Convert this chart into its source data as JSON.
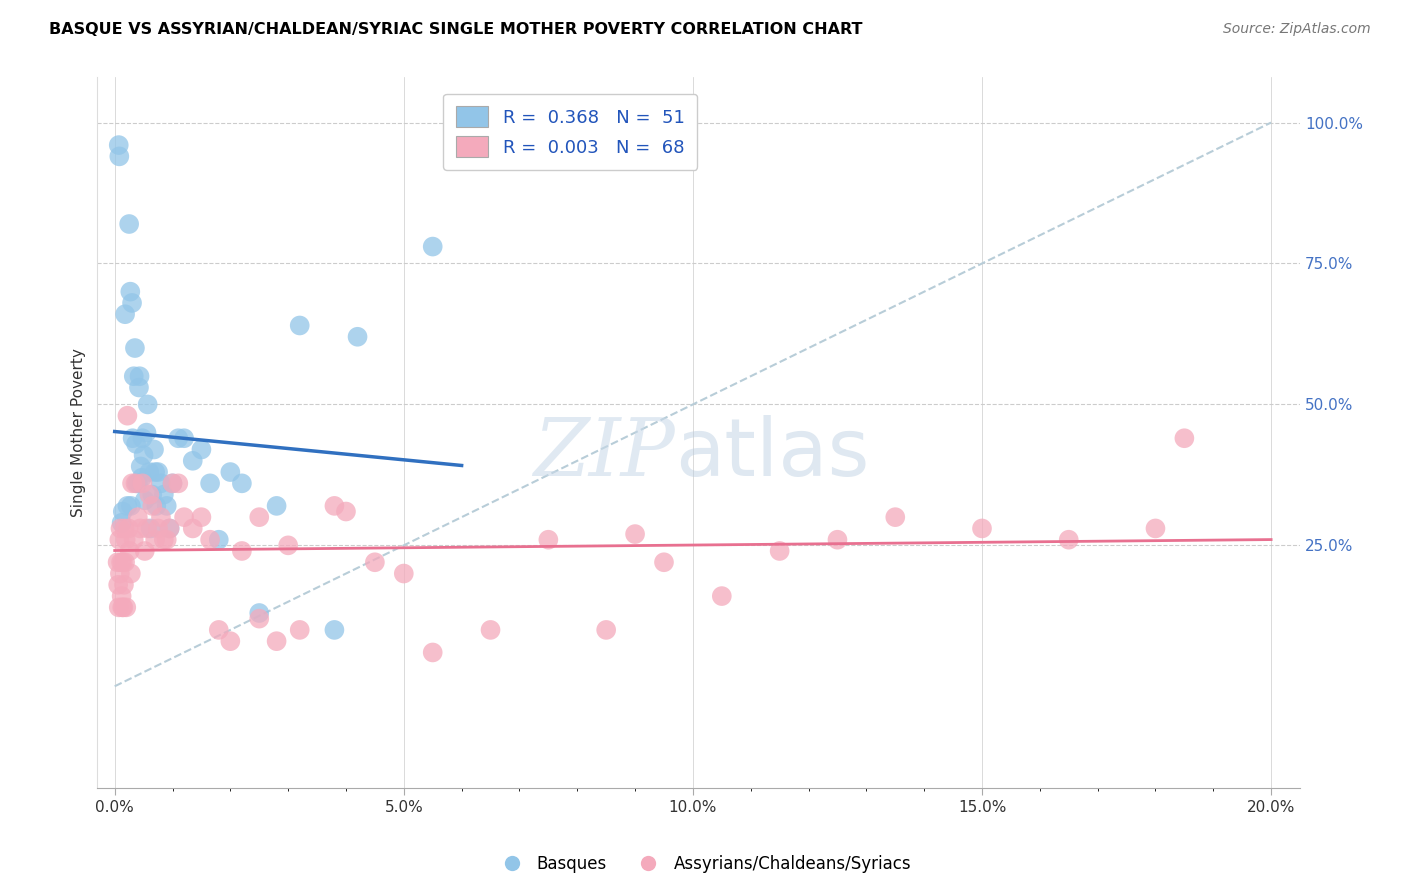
{
  "title": "BASQUE VS ASSYRIAN/CHALDEAN/SYRIAC SINGLE MOTHER POVERTY CORRELATION CHART",
  "source": "Source: ZipAtlas.com",
  "xlabel_ticks": [
    "0.0%",
    "",
    "",
    "",
    "",
    "5.0%",
    "",
    "",
    "",
    "",
    "10.0%",
    "",
    "",
    "",
    "",
    "15.0%",
    "",
    "",
    "",
    "",
    "20.0%"
  ],
  "xlabel_vals": [
    0.0,
    1.0,
    2.0,
    3.0,
    4.0,
    5.0,
    6.0,
    7.0,
    8.0,
    9.0,
    10.0,
    11.0,
    12.0,
    13.0,
    14.0,
    15.0,
    16.0,
    17.0,
    18.0,
    19.0,
    20.0
  ],
  "xlabel_major_ticks": [
    0.0,
    5.0,
    10.0,
    15.0,
    20.0
  ],
  "xlabel_major_labels": [
    "0.0%",
    "5.0%",
    "10.0%",
    "15.0%",
    "20.0%"
  ],
  "ylabel": "Single Mother Poverty",
  "ylabel_right_ticks": [
    "100.0%",
    "75.0%",
    "50.0%",
    "25.0%"
  ],
  "ylabel_right_vals": [
    100.0,
    75.0,
    50.0,
    25.0
  ],
  "xlim": [
    -0.3,
    20.5
  ],
  "ylim": [
    -18.0,
    108.0
  ],
  "legend_blue_r": "0.368",
  "legend_blue_n": "51",
  "legend_pink_r": "0.003",
  "legend_pink_n": "68",
  "blue_color": "#92C5E8",
  "pink_color": "#F4AABC",
  "blue_line_color": "#3070C0",
  "pink_line_color": "#E87090",
  "diagonal_color": "#B8CDD8",
  "watermark_zip": "ZIP",
  "watermark_atlas": "atlas",
  "basque_x": [
    0.07,
    0.08,
    0.12,
    0.14,
    0.18,
    0.22,
    0.25,
    0.27,
    0.28,
    0.3,
    0.31,
    0.33,
    0.35,
    0.37,
    0.38,
    0.4,
    0.42,
    0.43,
    0.45,
    0.47,
    0.48,
    0.5,
    0.52,
    0.55,
    0.57,
    0.6,
    0.62,
    0.65,
    0.68,
    0.7,
    0.72,
    0.75,
    0.8,
    0.85,
    0.9,
    0.95,
    1.0,
    1.1,
    1.2,
    1.35,
    1.5,
    1.65,
    1.8,
    2.0,
    2.2,
    2.5,
    2.8,
    3.2,
    3.8,
    4.2,
    5.5
  ],
  "basque_y": [
    96.0,
    94.0,
    29.0,
    31.0,
    66.0,
    32.0,
    82.0,
    70.0,
    32.0,
    68.0,
    44.0,
    55.0,
    60.0,
    43.0,
    36.0,
    36.0,
    53.0,
    55.0,
    39.0,
    37.0,
    44.0,
    41.0,
    33.0,
    45.0,
    50.0,
    38.0,
    28.0,
    34.0,
    42.0,
    38.0,
    32.0,
    38.0,
    36.0,
    34.0,
    32.0,
    28.0,
    36.0,
    44.0,
    44.0,
    40.0,
    42.0,
    36.0,
    26.0,
    38.0,
    36.0,
    13.0,
    32.0,
    64.0,
    10.0,
    62.0,
    78.0
  ],
  "assyrian_x": [
    0.05,
    0.06,
    0.07,
    0.08,
    0.09,
    0.1,
    0.11,
    0.12,
    0.13,
    0.14,
    0.15,
    0.16,
    0.17,
    0.18,
    0.19,
    0.2,
    0.22,
    0.24,
    0.26,
    0.28,
    0.3,
    0.33,
    0.36,
    0.4,
    0.44,
    0.48,
    0.52,
    0.56,
    0.6,
    0.65,
    0.7,
    0.75,
    0.8,
    0.85,
    0.9,
    0.95,
    1.0,
    1.1,
    1.2,
    1.35,
    1.5,
    1.65,
    1.8,
    2.0,
    2.2,
    2.5,
    2.8,
    3.2,
    3.8,
    4.5,
    5.5,
    6.5,
    7.5,
    8.5,
    9.5,
    10.5,
    11.5,
    12.5,
    13.5,
    15.0,
    16.5,
    18.0,
    18.5,
    9.0,
    5.0,
    4.0,
    3.0,
    2.5
  ],
  "assyrian_y": [
    22.0,
    18.0,
    14.0,
    26.0,
    20.0,
    28.0,
    22.0,
    16.0,
    14.0,
    22.0,
    14.0,
    18.0,
    28.0,
    22.0,
    26.0,
    14.0,
    48.0,
    28.0,
    24.0,
    20.0,
    36.0,
    26.0,
    36.0,
    30.0,
    28.0,
    36.0,
    24.0,
    28.0,
    34.0,
    32.0,
    26.0,
    28.0,
    30.0,
    26.0,
    26.0,
    28.0,
    36.0,
    36.0,
    30.0,
    28.0,
    30.0,
    26.0,
    10.0,
    8.0,
    24.0,
    30.0,
    8.0,
    10.0,
    32.0,
    22.0,
    6.0,
    10.0,
    26.0,
    10.0,
    22.0,
    16.0,
    24.0,
    26.0,
    30.0,
    28.0,
    26.0,
    28.0,
    44.0,
    27.0,
    20.0,
    31.0,
    25.0,
    12.0
  ]
}
